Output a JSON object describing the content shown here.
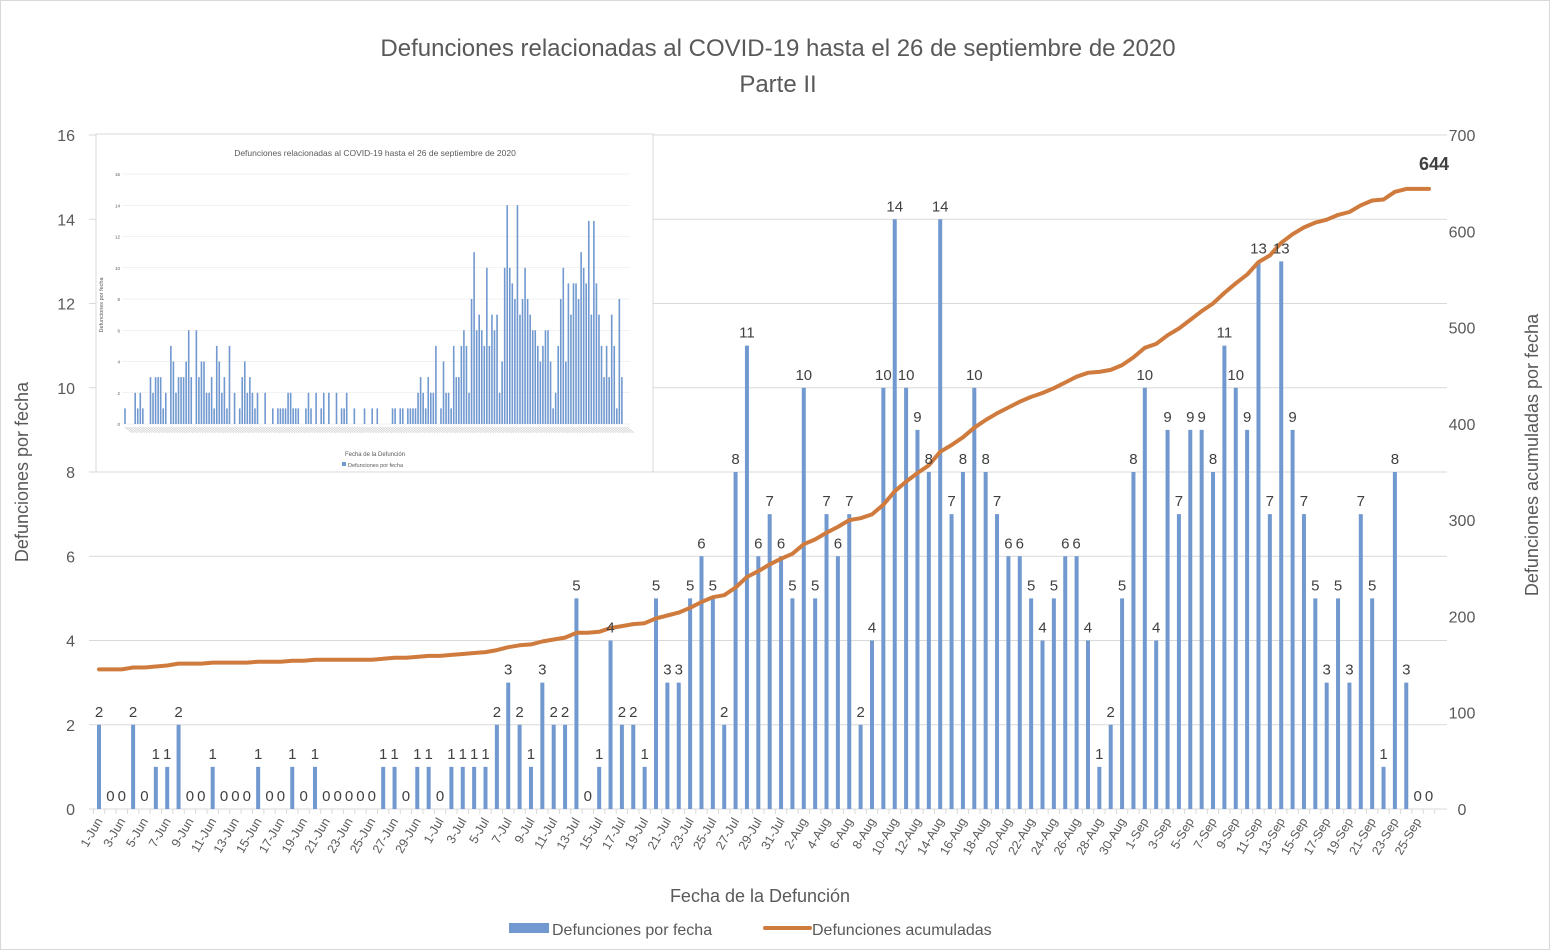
{
  "chart_data": [
    {
      "type": "bar+line",
      "title": "Defunciones relacionadas al COVID-19 hasta el 26 de septiembre de 2020",
      "subtitle": "Parte II",
      "xlabel": "Fecha de la Defunción",
      "ylabel_left": "Defunciones por fecha",
      "ylabel_right": "Defunciones acumuladas por fecha",
      "ylim_left": [
        0,
        16
      ],
      "ylim_right": [
        0,
        700
      ],
      "yticks_left": [
        "0",
        "2",
        "4",
        "6",
        "8",
        "10",
        "12",
        "14",
        "16"
      ],
      "yticks_right": [
        "0",
        "100",
        "200",
        "300",
        "400",
        "500",
        "600",
        "700"
      ],
      "grid": true,
      "legend_position": "bottom",
      "final_cumulative_label": "644",
      "x_start": "1-Jun",
      "x_end": "26-Sep",
      "x_tick_labels": [
        "1-Jun",
        "3-Jun",
        "5-Jun",
        "7-Jun",
        "9-Jun",
        "11-Jun",
        "13-Jun",
        "15-Jun",
        "17-Jun",
        "19-Jun",
        "21-Jun",
        "23-Jun",
        "25-Jun",
        "27-Jun",
        "29-Jun",
        "1-Jul",
        "3-Jul",
        "5-Jul",
        "7-Jul",
        "9-Jul",
        "11-Jul",
        "13-Jul",
        "15-Jul",
        "17-Jul",
        "19-Jul",
        "21-Jul",
        "23-Jul",
        "25-Jul",
        "27-Jul",
        "29-Jul",
        "31-Jul",
        "2-Aug",
        "4-Aug",
        "6-Aug",
        "8-Aug",
        "10-Aug",
        "12-Aug",
        "14-Aug",
        "16-Aug",
        "18-Aug",
        "20-Aug",
        "22-Aug",
        "24-Aug",
        "26-Aug",
        "28-Aug",
        "30-Aug",
        "1-Sep",
        "3-Sep",
        "5-Sep",
        "7-Sep",
        "9-Sep",
        "11-Sep",
        "13-Sep",
        "15-Sep",
        "17-Sep",
        "19-Sep",
        "21-Sep",
        "23-Sep",
        "25-Sep"
      ],
      "series": [
        {
          "name": "Defunciones por fecha",
          "type": "bar",
          "color": "#7199d0",
          "values": [
            2,
            0,
            0,
            2,
            0,
            1,
            1,
            2,
            0,
            0,
            1,
            0,
            0,
            0,
            1,
            0,
            0,
            1,
            0,
            1,
            0,
            0,
            0,
            0,
            0,
            1,
            1,
            0,
            1,
            1,
            0,
            1,
            1,
            1,
            1,
            2,
            3,
            2,
            1,
            3,
            2,
            2,
            5,
            0,
            1,
            4,
            2,
            2,
            1,
            5,
            3,
            3,
            5,
            6,
            5,
            2,
            8,
            11,
            6,
            7,
            6,
            5,
            10,
            5,
            7,
            6,
            7,
            2,
            4,
            10,
            14,
            10,
            9,
            8,
            14,
            7,
            8,
            10,
            8,
            7,
            6,
            6,
            5,
            4,
            5,
            6,
            6,
            4,
            1,
            2,
            5,
            8,
            10,
            4,
            9,
            7,
            9,
            9,
            8,
            11,
            10,
            9,
            13,
            7,
            13,
            9,
            7,
            5,
            3,
            5,
            3,
            7,
            5,
            1,
            8,
            3,
            0,
            0
          ]
        },
        {
          "name": "Defunciones acumuladas",
          "type": "line",
          "color": "#d07b3e",
          "values": [
            145,
            145,
            145,
            147,
            147,
            148,
            149,
            151,
            151,
            151,
            152,
            152,
            152,
            152,
            153,
            153,
            153,
            154,
            154,
            155,
            155,
            155,
            155,
            155,
            155,
            156,
            157,
            157,
            158,
            159,
            159,
            160,
            161,
            162,
            163,
            165,
            168,
            170,
            171,
            174,
            176,
            178,
            183,
            183,
            184,
            188,
            190,
            192,
            193,
            198,
            201,
            204,
            209,
            215,
            220,
            222,
            230,
            241,
            247,
            254,
            260,
            265,
            275,
            280,
            287,
            293,
            300,
            302,
            306,
            316,
            330,
            340,
            349,
            357,
            371,
            378,
            386,
            396,
            404,
            411,
            417,
            423,
            428,
            432,
            437,
            443,
            449,
            453,
            454,
            456,
            461,
            469,
            479,
            483,
            492,
            499,
            508,
            517,
            525,
            536,
            546,
            555,
            568,
            575,
            588,
            597,
            604,
            609,
            612,
            617,
            620,
            627,
            632,
            633,
            641,
            644,
            644,
            644
          ]
        }
      ]
    },
    {
      "type": "bar",
      "inset": true,
      "title": "Defunciones relacionadas al COVID-19 hasta el 26 de septiembre de 2020",
      "xlabel": "Fecha de la Defunción",
      "ylabel": "Defunciones por fecha",
      "ylim": [
        0,
        16
      ],
      "yticks": [
        "0",
        "2",
        "4",
        "6",
        "8",
        "10",
        "12",
        "14",
        "16"
      ],
      "legend": "Defunciones por fecha",
      "color": "#7199d0",
      "values": [
        1,
        0,
        0,
        0,
        2,
        1,
        2,
        1,
        0,
        0,
        3,
        2,
        3,
        3,
        3,
        1,
        2,
        0,
        5,
        4,
        2,
        3,
        3,
        3,
        4,
        6,
        3,
        0,
        6,
        3,
        4,
        4,
        2,
        2,
        3,
        1,
        5,
        4,
        2,
        3,
        1,
        5,
        0,
        2,
        0,
        1,
        3,
        4,
        2,
        3,
        2,
        1,
        2,
        0,
        0,
        2,
        0,
        0,
        1,
        0,
        1,
        1,
        1,
        1,
        2,
        2,
        1,
        1,
        1,
        0,
        0,
        1,
        2,
        1,
        0,
        2,
        0,
        1,
        2,
        0,
        2,
        0,
        0,
        2,
        0,
        1,
        1,
        2,
        0,
        0,
        1,
        0,
        0,
        0,
        1,
        0,
        0,
        1,
        0,
        1,
        0,
        0,
        0,
        0,
        0,
        1,
        1,
        0,
        1,
        1,
        0,
        1,
        1,
        1,
        1,
        2,
        3,
        2,
        1,
        3,
        2,
        2,
        5,
        0,
        1,
        4,
        2,
        2,
        1,
        5,
        3,
        3,
        5,
        6,
        5,
        2,
        8,
        11,
        6,
        7,
        6,
        5,
        10,
        5,
        7,
        6,
        7,
        2,
        4,
        10,
        14,
        10,
        9,
        8,
        14,
        7,
        8,
        10,
        8,
        7,
        6,
        6,
        5,
        4,
        5,
        6,
        6,
        4,
        1,
        2,
        5,
        8,
        10,
        4,
        9,
        7,
        9,
        9,
        8,
        11,
        10,
        9,
        13,
        7,
        13,
        9,
        7,
        5,
        3,
        5,
        3,
        7,
        5,
        1,
        8,
        3,
        0,
        0
      ]
    }
  ]
}
